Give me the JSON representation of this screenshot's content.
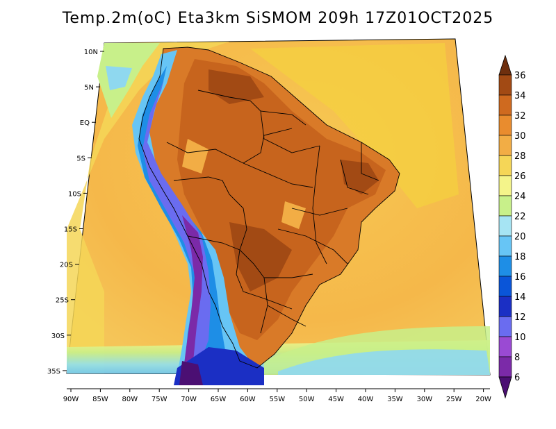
{
  "title": "Temp.2m(oC) Eta3km SiSMOM 209h 17Z01OCT2025",
  "lat_labels": [
    "10N",
    "5N",
    "EQ",
    "5S",
    "10S",
    "15S",
    "20S",
    "25S",
    "30S",
    "35S"
  ],
  "lon_labels": [
    "90W",
    "85W",
    "80W",
    "75W",
    "70W",
    "65W",
    "60W",
    "55W",
    "50W",
    "45W",
    "40W",
    "35W",
    "30W",
    "25W",
    "20W"
  ],
  "colorbar": {
    "levels": [
      6,
      8,
      10,
      12,
      14,
      16,
      18,
      20,
      22,
      24,
      26,
      28,
      30,
      32,
      34,
      36
    ],
    "colors": [
      "#4b0f73",
      "#7b2aa8",
      "#9a4ad3",
      "#6a6cf0",
      "#1b2fc4",
      "#0a55d8",
      "#1e8ee6",
      "#67c5f5",
      "#a6e4f3",
      "#c8f08a",
      "#f4f48a",
      "#f5d657",
      "#f2ad45",
      "#e98c2e",
      "#cf6a1f",
      "#a24a14",
      "#6e2f0e"
    ],
    "label_values": [
      "36",
      "34",
      "32",
      "30",
      "28",
      "26",
      "24",
      "22",
      "20",
      "18",
      "16",
      "14",
      "12",
      "10",
      "8",
      "6"
    ]
  }
}
